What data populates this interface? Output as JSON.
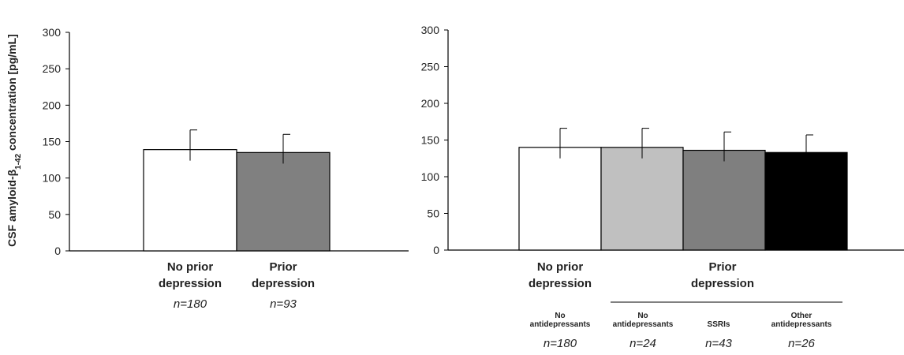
{
  "chart_data": [
    {
      "type": "bar",
      "ylabel": "CSF amyloid-β1-42 concentration [pg/mL]",
      "ylabel_parts": {
        "pre": "CSF amyloid-β",
        "sub": "1-42",
        "post": " concentration [pg/mL]"
      },
      "ylim": [
        0,
        300
      ],
      "yticks": [
        0,
        50,
        100,
        150,
        200,
        250,
        300
      ],
      "categories": [
        {
          "label_lines": [
            "No prior",
            "depression"
          ],
          "n": "n=180",
          "value": 139,
          "error": 27,
          "color": "#ffffff"
        },
        {
          "label_lines": [
            "Prior",
            "depression"
          ],
          "n": "n=93",
          "value": 135,
          "error": 25,
          "color": "#808080"
        }
      ]
    },
    {
      "type": "bar",
      "ylim": [
        0,
        300
      ],
      "yticks": [
        0,
        50,
        100,
        150,
        200,
        250,
        300
      ],
      "group_labels": [
        {
          "lines": [
            "No prior",
            "depression"
          ]
        },
        {
          "lines": [
            "Prior",
            "depression"
          ]
        }
      ],
      "categories": [
        {
          "sublabel_lines": [
            "No",
            "antidepressants"
          ],
          "n": "n=180",
          "value": 140,
          "error": 26,
          "color": "#ffffff"
        },
        {
          "sublabel_lines": [
            "No",
            "antidepressants"
          ],
          "n": "n=24",
          "value": 140,
          "error": 26,
          "color": "#c0c0c0"
        },
        {
          "sublabel_lines": [
            "SSRIs"
          ],
          "n": "n=43",
          "value": 136,
          "error": 25,
          "color": "#7f7f7f"
        },
        {
          "sublabel_lines": [
            "Other",
            "antidepressants"
          ],
          "n": "n=26",
          "value": 133,
          "error": 24,
          "color": "#000000"
        }
      ]
    }
  ]
}
